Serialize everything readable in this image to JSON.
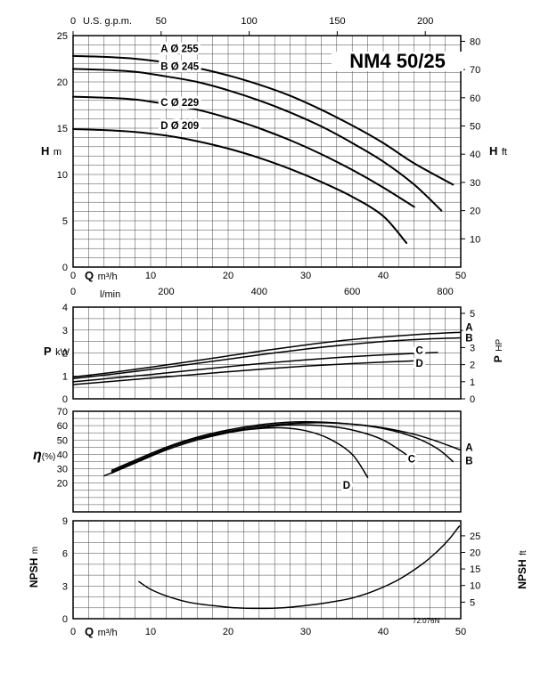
{
  "page": {
    "title": "NM4 50/25",
    "code": "72.076N",
    "background": "#ffffff",
    "ink": "#000000"
  },
  "labels": {
    "gpm_axis": "U.S. g.p.m.",
    "h_left_sym": "H",
    "h_left_unit": "m",
    "h_right_sym": "H",
    "h_right_unit": "ft",
    "q_top_sym": "Q",
    "q_top_unit": "m³/h",
    "lmin_axis": "l/min",
    "p_left_sym": "P",
    "p_left_unit": "kW",
    "p_right_sym": "P",
    "p_right_unit": "HP",
    "eta_sym": "η",
    "eta_unit": "(%)",
    "npsh_left_sym": "NPSH",
    "npsh_left_unit": "m",
    "npsh_right_sym": "NPSH",
    "npsh_right_unit": "ft",
    "q_bottom_sym": "Q",
    "q_bottom_unit": "m³/h"
  },
  "chart_data": [
    {
      "type": "line",
      "name": "head-flow",
      "title": "NM4 50/25",
      "xlabel": "Q m³/h",
      "x2label": "U.S. g.p.m.",
      "x3label": "l/min",
      "ylabel": "H m",
      "y2label": "H ft",
      "xlim": [
        0,
        50
      ],
      "ylim": [
        0,
        25
      ],
      "x_ticks": [
        0,
        10,
        20,
        30,
        40,
        50
      ],
      "x2_ticks": [
        0,
        50,
        100,
        150,
        200
      ],
      "x3_ticks": [
        0,
        200,
        400,
        600,
        800
      ],
      "y_ticks": [
        0,
        5,
        10,
        15,
        20,
        25
      ],
      "y2_ticks": [
        10,
        20,
        30,
        40,
        50,
        60,
        70,
        80
      ],
      "grid_step": {
        "x": 2,
        "y": 1
      },
      "legend_position": "inline-left",
      "grid": "on",
      "series": [
        {
          "name": "A",
          "label": "A Ø 255",
          "x": [
            0,
            4,
            8,
            12,
            16,
            20,
            24,
            28,
            32,
            36,
            40,
            44,
            49
          ],
          "y": [
            22.8,
            22.7,
            22.5,
            22.1,
            21.5,
            20.7,
            19.7,
            18.5,
            17.0,
            15.3,
            13.4,
            11.2,
            8.9
          ]
        },
        {
          "name": "B",
          "label": "B Ø 245",
          "x": [
            0,
            4,
            8,
            12,
            16,
            20,
            24,
            28,
            32,
            36,
            40,
            44,
            47.5
          ],
          "y": [
            21.4,
            21.3,
            21.1,
            20.6,
            20.0,
            19.1,
            18.0,
            16.7,
            15.2,
            13.4,
            11.4,
            8.9,
            6.1
          ]
        },
        {
          "name": "C",
          "label": "C Ø 229",
          "x": [
            0,
            4,
            8,
            12,
            16,
            20,
            24,
            28,
            32,
            36,
            40,
            44
          ],
          "y": [
            18.4,
            18.3,
            18.1,
            17.6,
            17.0,
            16.1,
            15.0,
            13.7,
            12.2,
            10.5,
            8.6,
            6.5
          ]
        },
        {
          "name": "D",
          "label": "D Ø 209",
          "x": [
            0,
            4,
            8,
            12,
            16,
            20,
            24,
            28,
            32,
            36,
            40,
            43
          ],
          "y": [
            14.9,
            14.8,
            14.6,
            14.2,
            13.6,
            12.8,
            11.8,
            10.6,
            9.2,
            7.6,
            5.5,
            2.6
          ]
        }
      ]
    },
    {
      "type": "line",
      "name": "power-flow",
      "xlabel": "Q m³/h",
      "ylabel": "P kW",
      "y2label": "P HP",
      "xlim": [
        0,
        50
      ],
      "ylim": [
        0,
        4
      ],
      "y_ticks": [
        0,
        1,
        2,
        3,
        4
      ],
      "y2_ticks": [
        0,
        1,
        2,
        3,
        4,
        5
      ],
      "grid_step": {
        "x": 2,
        "y": 0.5
      },
      "grid": "on",
      "series": [
        {
          "name": "A",
          "label": "A",
          "x": [
            0,
            5,
            10,
            15,
            20,
            25,
            30,
            35,
            40,
            45,
            50
          ],
          "y": [
            0.95,
            1.15,
            1.38,
            1.62,
            1.87,
            2.12,
            2.35,
            2.55,
            2.7,
            2.82,
            2.9
          ]
        },
        {
          "name": "B",
          "label": "B",
          "x": [
            0,
            5,
            10,
            15,
            20,
            25,
            30,
            35,
            40,
            45,
            50
          ],
          "y": [
            0.88,
            1.07,
            1.28,
            1.5,
            1.73,
            1.96,
            2.17,
            2.35,
            2.5,
            2.6,
            2.66
          ]
        },
        {
          "name": "C",
          "label": "C",
          "x": [
            0,
            5,
            10,
            15,
            20,
            25,
            30,
            35,
            40,
            44,
            47
          ],
          "y": [
            0.74,
            0.9,
            1.06,
            1.23,
            1.4,
            1.56,
            1.7,
            1.82,
            1.92,
            1.98,
            2.02
          ]
        },
        {
          "name": "D",
          "label": "D",
          "x": [
            0,
            5,
            10,
            15,
            20,
            25,
            30,
            35,
            40,
            45
          ],
          "y": [
            0.62,
            0.76,
            0.9,
            1.04,
            1.18,
            1.31,
            1.43,
            1.52,
            1.6,
            1.67
          ]
        }
      ]
    },
    {
      "type": "line",
      "name": "efficiency-flow",
      "xlabel": "Q m³/h",
      "ylabel": "η (%)",
      "xlim": [
        0,
        50
      ],
      "ylim": [
        0,
        70
      ],
      "y_ticks": [
        20,
        30,
        40,
        50,
        60,
        70
      ],
      "grid_step": {
        "x": 2,
        "y": 5
      },
      "grid": "on",
      "series": [
        {
          "name": "A",
          "label": "A",
          "x": [
            5,
            8,
            12,
            16,
            20,
            24,
            28,
            32,
            36,
            40,
            44,
            47,
            50
          ],
          "y": [
            28,
            35,
            44,
            51,
            56,
            59.5,
            61.5,
            62,
            61,
            58.5,
            54,
            49,
            43
          ]
        },
        {
          "name": "B",
          "label": "B",
          "x": [
            5,
            8,
            12,
            16,
            20,
            24,
            28,
            32,
            36,
            40,
            44,
            47,
            49
          ],
          "y": [
            29,
            36,
            45,
            52,
            57,
            60.5,
            62.5,
            62.5,
            61,
            58,
            52,
            44,
            35
          ]
        },
        {
          "name": "C",
          "label": "C",
          "x": [
            5,
            8,
            12,
            16,
            20,
            24,
            28,
            32,
            36,
            40,
            44
          ],
          "y": [
            27,
            34,
            43,
            50,
            55,
            58.5,
            60.5,
            60,
            57,
            50,
            36
          ]
        },
        {
          "name": "D",
          "label": "D",
          "x": [
            4,
            8,
            12,
            16,
            20,
            24,
            27,
            30,
            33,
            36,
            38
          ],
          "y": [
            25,
            34,
            44,
            51,
            55.5,
            58,
            58.5,
            56.5,
            51,
            40,
            24
          ]
        }
      ]
    },
    {
      "type": "line",
      "name": "npsh-flow",
      "xlabel": "Q m³/h",
      "ylabel": "NPSH m",
      "y2label": "NPSH ft",
      "xlim": [
        0,
        50
      ],
      "ylim": [
        0,
        9
      ],
      "x_ticks": [
        0,
        10,
        20,
        30,
        40,
        50
      ],
      "y_ticks": [
        0,
        3,
        6,
        9
      ],
      "y2_ticks": [
        5,
        10,
        15,
        20,
        25
      ],
      "grid_step": {
        "x": 2,
        "y": 1
      },
      "grid": "on",
      "series": [
        {
          "name": "NPSH",
          "label": "",
          "x": [
            8.5,
            10,
            12,
            15,
            18,
            21,
            24,
            27,
            30,
            33,
            36,
            39,
            42,
            45,
            47,
            48.5,
            49.8
          ],
          "y": [
            3.4,
            2.7,
            2.1,
            1.5,
            1.2,
            1.0,
            0.95,
            1.0,
            1.2,
            1.5,
            1.9,
            2.6,
            3.6,
            5.0,
            6.2,
            7.3,
            8.5
          ]
        }
      ]
    }
  ]
}
